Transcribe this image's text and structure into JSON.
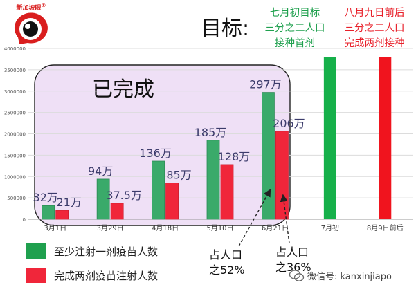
{
  "brand": {
    "name": "新加坡眼",
    "registered": "®",
    "accent": "#d91e1e"
  },
  "title": "目标:",
  "goals": [
    {
      "lines": [
        "七月初目标",
        "三分之二人口",
        "接种首剂"
      ],
      "color": "#1fa04e"
    },
    {
      "lines": [
        "八月九日前后",
        "三分之二人口",
        "完成两剂接种"
      ],
      "color": "#e8202a"
    }
  ],
  "completed_label": "已完成",
  "legend": [
    {
      "label": "至少注射一剂疫苗人数",
      "color": "#1fa04e"
    },
    {
      "label": "完成两剂疫苗注射人数",
      "color": "#f0263a"
    }
  ],
  "notes": [
    {
      "lines": [
        "占人口",
        "之52%"
      ]
    },
    {
      "lines": [
        "占人口",
        "之36%"
      ]
    }
  ],
  "watermark": "微信号: kanxinjiapo",
  "chart_data": {
    "type": "bar",
    "categories": [
      "3月1日",
      "3月29日",
      "4月18日",
      "5月10日",
      "6月21日",
      "7月初",
      "8月9日前后"
    ],
    "series": [
      {
        "name": "至少注射一剂疫苗人数",
        "color": "#3aaa6a",
        "values": [
          320000,
          940000,
          1360000,
          1850000,
          2970000,
          null,
          null
        ],
        "labels": [
          "32万",
          "94万",
          "136万",
          "185万",
          "297万",
          "",
          ""
        ]
      },
      {
        "name": "完成两剂疫苗注射人数",
        "color": "#f0263a",
        "values": [
          210000,
          375000,
          850000,
          1280000,
          2060000,
          null,
          null
        ],
        "labels": [
          "21万",
          "37.5万",
          "85万",
          "128万",
          "206万",
          "",
          ""
        ]
      }
    ],
    "targets": [
      {
        "category": "7月初",
        "value": 3800000,
        "color": "#16b04a"
      },
      {
        "category": "8月9日前后",
        "value": 3800000,
        "color": "#f0141e"
      }
    ],
    "yticks": [
      "0",
      "500000",
      "1000000",
      "1500000",
      "2000000",
      "2500000",
      "3000000",
      "3500000",
      "4000000"
    ],
    "ylim": [
      0,
      4000000
    ],
    "grid": true
  }
}
